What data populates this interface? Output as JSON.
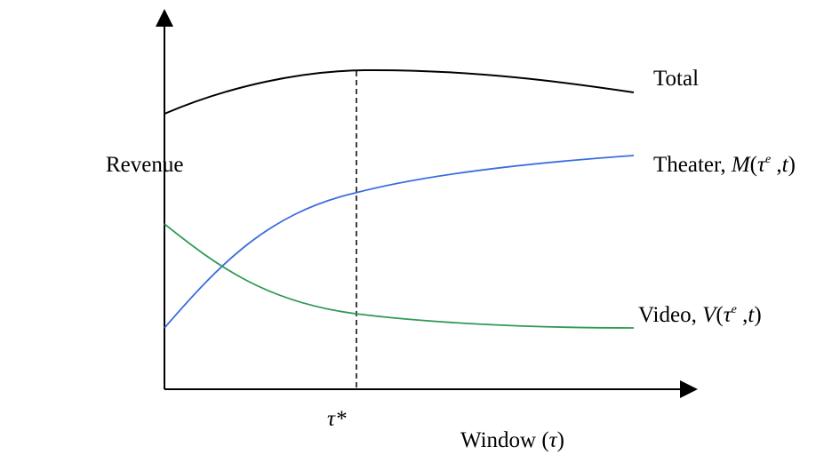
{
  "chart_data": {
    "type": "line",
    "title": "",
    "ylabel": "Revenue",
    "xlabel": {
      "prefix": "Window (",
      "symbol": "τ",
      "suffix": ")"
    },
    "xtick_labels": [
      "τ*"
    ],
    "series": [
      {
        "name": "Total",
        "color": "#000000",
        "shape": "rising to a maximum at τ* and then declining slightly"
      },
      {
        "name": "Theater, M(τ^e ,t)",
        "color": "#3a6de0",
        "shape": "increasing and concave"
      },
      {
        "name": "Video, V(τ^e ,t)",
        "color": "#2f9a55",
        "shape": "decreasing and flattening"
      }
    ],
    "annotations": [
      "dashed vertical reference line at τ*"
    ],
    "grid": false,
    "legend": "direct labels at the right ends of the curves"
  },
  "labels": {
    "total": "Total",
    "theater_prefix": "Theater, ",
    "theater_func": "M",
    "video_prefix": "Video, ",
    "video_func": "V",
    "tau": "τ",
    "tau_exponent": "e",
    "arg_rest": " ,",
    "arg_var": "t",
    "close_paren": ")",
    "open_paren": "("
  }
}
